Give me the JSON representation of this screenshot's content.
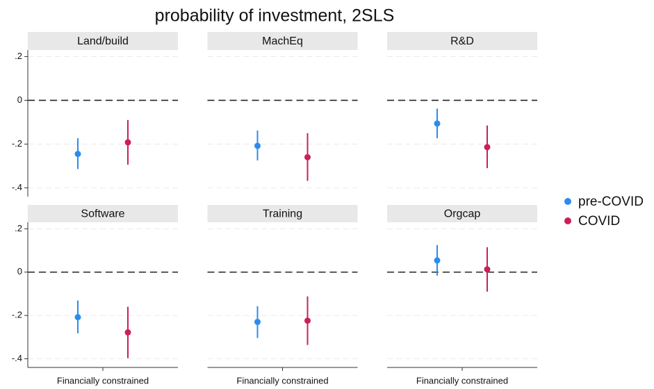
{
  "chart_data": {
    "type": "errorbar",
    "title": "probability of investment, 2SLS",
    "panels": [
      "Land/build",
      "MachEq",
      "R&D",
      "Software",
      "Training",
      "Orgcap"
    ],
    "series": [
      {
        "name": "pre-COVID",
        "color": "#2b8cee",
        "x": 1,
        "values": [
          -0.245,
          -0.208,
          -0.106,
          -0.208,
          -0.23,
          0.054
        ],
        "lower": [
          -0.314,
          -0.275,
          -0.173,
          -0.282,
          -0.304,
          -0.016
        ],
        "upper": [
          -0.173,
          -0.138,
          -0.038,
          -0.131,
          -0.157,
          0.125
        ]
      },
      {
        "name": "COVID",
        "color": "#cc1f5a",
        "x": 2,
        "values": [
          -0.192,
          -0.26,
          -0.214,
          -0.278,
          -0.224,
          0.013
        ],
        "lower": [
          -0.294,
          -0.368,
          -0.31,
          -0.397,
          -0.336,
          -0.09
        ],
        "upper": [
          -0.09,
          -0.15,
          -0.115,
          -0.16,
          -0.112,
          0.115
        ]
      }
    ],
    "reference_line": 0,
    "xlim": [
      0,
      3
    ],
    "xticks": [
      {
        "value": 1.5,
        "label": "Financially constrained"
      }
    ],
    "ylim": [
      -0.44,
      0.23
    ],
    "yticks": [
      {
        "value": 0.2,
        "label": ".2"
      },
      0,
      {
        "value": -0.2,
        "label": "-.2"
      },
      {
        "value": -0.4,
        "label": "-.4"
      }
    ],
    "grid": true,
    "legend": "right"
  }
}
